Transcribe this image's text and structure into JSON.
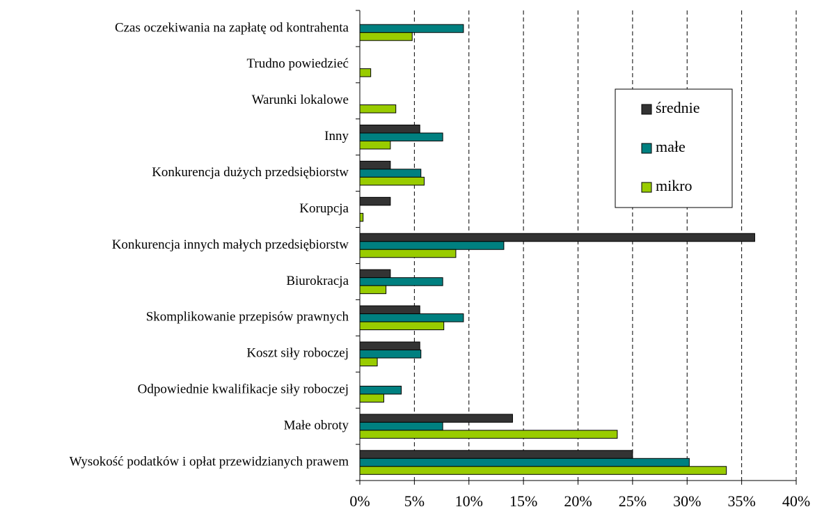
{
  "chart_data": {
    "type": "hbar",
    "categories": [
      "Czas oczekiwania na zapłatę od kontrahenta",
      "Trudno powiedzieć",
      "Warunki lokalowe",
      "Inny",
      "Konkurencja dużych przedsiębiorstw",
      "Korupcja",
      "Konkurencja innych małych przedsiębiorstw",
      "Biurokracja",
      "Skomplikowanie przepisów prawnych",
      "Koszt siły roboczej",
      "Odpowiednie kwalifikacje siły roboczej",
      "Małe obroty",
      "Wysokość podatków i opłat przewidzianych prawem"
    ],
    "series": [
      {
        "name": "średnie",
        "color": "#333333",
        "values": [
          0,
          0,
          0,
          5.5,
          2.8,
          2.8,
          36.2,
          2.8,
          5.5,
          5.5,
          0,
          14.0,
          25.0
        ]
      },
      {
        "name": "małe",
        "color": "#008080",
        "values": [
          9.5,
          0,
          0,
          7.6,
          5.6,
          0,
          13.2,
          7.6,
          9.5,
          5.6,
          3.8,
          7.6,
          30.2
        ]
      },
      {
        "name": "mikro",
        "color": "#99cc00",
        "values": [
          4.8,
          1.0,
          3.3,
          2.8,
          5.9,
          0.3,
          8.8,
          2.4,
          7.7,
          1.6,
          2.2,
          23.6,
          33.6
        ]
      }
    ],
    "xlim": [
      0,
      40
    ],
    "xticks": [
      {
        "value": 0,
        "label": "0%"
      },
      {
        "value": 5,
        "label": "5%"
      },
      {
        "value": 10,
        "label": "10%"
      },
      {
        "value": 15,
        "label": "15%"
      },
      {
        "value": 20,
        "label": "20%"
      },
      {
        "value": 25,
        "label": "25%"
      },
      {
        "value": 30,
        "label": "30%"
      },
      {
        "value": 35,
        "label": "35%"
      },
      {
        "value": 40,
        "label": "40%"
      }
    ],
    "grid": true,
    "legend": "right"
  }
}
